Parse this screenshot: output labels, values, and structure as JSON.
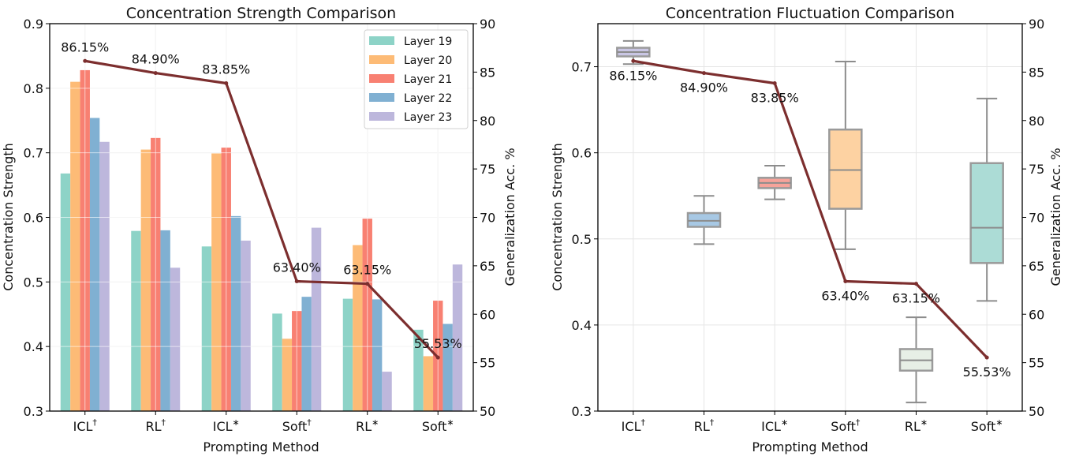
{
  "chart_data": [
    {
      "type": "bar",
      "title": "Concentration Strength Comparison",
      "xlabel": "Prompting Method",
      "ylabel": "Concentration Strength",
      "y2label": "Generalization Acc. %",
      "ylim": [
        0.3,
        0.9
      ],
      "yticks": [
        0.3,
        0.4,
        0.5,
        0.6,
        0.7,
        0.8,
        0.9
      ],
      "y2lim": [
        50,
        90
      ],
      "y2ticks": [
        50,
        55,
        60,
        65,
        70,
        75,
        80,
        85,
        90
      ],
      "grid": true,
      "legend_placement": "top-right",
      "categories": [
        "ICL†",
        "RL†",
        "ICL*",
        "Soft†",
        "RL*",
        "Soft*"
      ],
      "series": [
        {
          "name": "Layer 19",
          "color": "#8dd3c7",
          "values": [
            0.668,
            0.579,
            0.555,
            0.451,
            0.474,
            0.426
          ]
        },
        {
          "name": "Layer 20",
          "color": "#fdbb76",
          "values": [
            0.81,
            0.705,
            0.699,
            0.412,
            0.557,
            0.385
          ]
        },
        {
          "name": "Layer 21",
          "color": "#f88072",
          "values": [
            0.828,
            0.723,
            0.708,
            0.455,
            0.598,
            0.471
          ]
        },
        {
          "name": "Layer 22",
          "color": "#80b0d2",
          "values": [
            0.754,
            0.58,
            0.602,
            0.477,
            0.473,
            0.435
          ]
        },
        {
          "name": "Layer 23",
          "color": "#bdb7dc",
          "values": [
            0.717,
            0.522,
            0.564,
            0.584,
            0.361,
            0.527
          ]
        }
      ],
      "accuracy_line": {
        "color": "#7c2e2e",
        "values": [
          86.15,
          84.9,
          83.85,
          63.4,
          63.15,
          55.53
        ],
        "labels": [
          "86.15%",
          "84.90%",
          "83.85%",
          "63.40%",
          "63.15%",
          "55.53%"
        ]
      }
    },
    {
      "type": "box",
      "title": "Concentration Fluctuation Comparison",
      "xlabel": "Prompting Method",
      "ylabel": "Concentration Strength",
      "y2label": "Generalization Acc. %",
      "ylim": [
        0.3,
        0.75
      ],
      "yticks": [
        0.3,
        0.4,
        0.5,
        0.6,
        0.7
      ],
      "y2lim": [
        50,
        90
      ],
      "y2ticks": [
        50,
        55,
        60,
        65,
        70,
        75,
        80,
        85,
        90
      ],
      "grid": true,
      "categories": [
        "ICL†",
        "RL†",
        "ICL*",
        "Soft†",
        "RL*",
        "Soft*"
      ],
      "boxes": [
        {
          "whislo": 0.703,
          "q1": 0.712,
          "med": 0.717,
          "q3": 0.722,
          "whishi": 0.73,
          "color": "#c9c6e4"
        },
        {
          "whislo": 0.494,
          "q1": 0.514,
          "med": 0.521,
          "q3": 0.53,
          "whishi": 0.55,
          "color": "#a7c8e4"
        },
        {
          "whislo": 0.546,
          "q1": 0.559,
          "med": 0.565,
          "q3": 0.571,
          "whishi": 0.585,
          "color": "#f6a39a"
        },
        {
          "whislo": 0.488,
          "q1": 0.535,
          "med": 0.58,
          "q3": 0.627,
          "whishi": 0.706,
          "color": "#fdd2a2"
        },
        {
          "whislo": 0.31,
          "q1": 0.347,
          "med": 0.359,
          "q3": 0.372,
          "whishi": 0.409,
          "color": "#e7efe6"
        },
        {
          "whislo": 0.428,
          "q1": 0.472,
          "med": 0.513,
          "q3": 0.588,
          "whishi": 0.663,
          "color": "#acdcd6"
        }
      ],
      "accuracy_line": {
        "color": "#7c2e2e",
        "values": [
          86.15,
          84.9,
          83.85,
          63.4,
          63.15,
          55.53
        ],
        "labels": [
          "86.15%",
          "84.90%",
          "83.85%",
          "63.40%",
          "63.15%",
          "55.53%"
        ]
      }
    }
  ]
}
